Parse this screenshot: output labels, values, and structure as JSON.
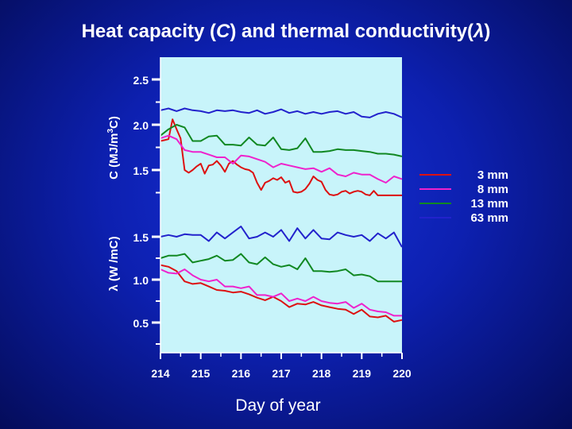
{
  "title": {
    "prefix": "Heat capacity (",
    "sym1": "C",
    "middle": ") and thermal conductivity(",
    "sym2": "λ",
    "suffix": ")"
  },
  "chart_data": [
    {
      "type": "line",
      "ylabel_parts": [
        "C (MJ/m",
        "3",
        "C)"
      ],
      "ylim": [
        1.0,
        2.5
      ],
      "yticks": [
        {
          "value": 1.5,
          "label": "1.5"
        },
        {
          "value": 2.0,
          "label": "2.0"
        },
        {
          "value": 2.5,
          "label": "2.5"
        }
      ],
      "series": [
        {
          "name": "3 mm",
          "color": "#dd1111",
          "x": [
            214.0,
            214.1,
            214.2,
            214.3,
            214.4,
            214.5,
            214.6,
            214.7,
            214.8,
            214.9,
            215.0,
            215.1,
            215.2,
            215.3,
            215.4,
            215.5,
            215.6,
            215.7,
            215.8,
            215.9,
            216.0,
            216.1,
            216.2,
            216.3,
            216.4,
            216.5,
            216.6,
            216.7,
            216.8,
            216.9,
            217.0,
            217.1,
            217.2,
            217.3,
            217.4,
            217.5,
            217.6,
            217.7,
            217.8,
            217.9,
            218.0,
            218.1,
            218.2,
            218.3,
            218.4,
            218.5,
            218.6,
            218.7,
            218.8,
            218.9,
            219.0,
            219.1,
            219.2,
            219.3,
            219.4,
            219.5,
            219.6,
            219.7,
            219.8,
            219.9,
            220.0
          ],
          "values": [
            1.82,
            1.83,
            1.84,
            2.06,
            1.95,
            1.85,
            1.5,
            1.47,
            1.5,
            1.54,
            1.57,
            1.46,
            1.55,
            1.56,
            1.6,
            1.55,
            1.48,
            1.57,
            1.6,
            1.56,
            1.53,
            1.51,
            1.5,
            1.47,
            1.36,
            1.28,
            1.36,
            1.38,
            1.41,
            1.39,
            1.42,
            1.36,
            1.38,
            1.26,
            1.25,
            1.26,
            1.29,
            1.35,
            1.43,
            1.39,
            1.37,
            1.28,
            1.23,
            1.22,
            1.23,
            1.26,
            1.27,
            1.24,
            1.26,
            1.27,
            1.26,
            1.23,
            1.22,
            1.27,
            1.22,
            1.22,
            1.22,
            1.22,
            1.22,
            1.22,
            1.22
          ]
        },
        {
          "name": "8 mm",
          "color": "#ee22cc",
          "x": [
            214.0,
            214.2,
            214.4,
            214.6,
            214.8,
            215.0,
            215.2,
            215.4,
            215.6,
            215.8,
            216.0,
            216.2,
            216.4,
            216.6,
            216.8,
            217.0,
            217.2,
            217.4,
            217.6,
            217.8,
            218.0,
            218.2,
            218.4,
            218.6,
            218.8,
            219.0,
            219.2,
            219.4,
            219.6,
            219.8,
            220.0
          ],
          "values": [
            1.85,
            1.88,
            1.84,
            1.72,
            1.7,
            1.7,
            1.67,
            1.64,
            1.64,
            1.57,
            1.66,
            1.65,
            1.62,
            1.59,
            1.53,
            1.57,
            1.55,
            1.53,
            1.51,
            1.52,
            1.48,
            1.52,
            1.45,
            1.43,
            1.47,
            1.45,
            1.45,
            1.4,
            1.36,
            1.43,
            1.4
          ]
        },
        {
          "name": "13 mm",
          "color": "#118822",
          "x": [
            214.0,
            214.2,
            214.4,
            214.6,
            214.8,
            215.0,
            215.2,
            215.4,
            215.6,
            215.8,
            216.0,
            216.2,
            216.4,
            216.6,
            216.8,
            217.0,
            217.2,
            217.4,
            217.6,
            217.8,
            218.0,
            218.2,
            218.4,
            218.6,
            218.8,
            219.0,
            219.2,
            219.4,
            219.6,
            219.8,
            220.0
          ],
          "values": [
            1.88,
            1.95,
            2.0,
            1.97,
            1.82,
            1.82,
            1.87,
            1.88,
            1.78,
            1.78,
            1.77,
            1.86,
            1.78,
            1.77,
            1.86,
            1.73,
            1.72,
            1.74,
            1.85,
            1.7,
            1.7,
            1.71,
            1.73,
            1.72,
            1.72,
            1.71,
            1.7,
            1.68,
            1.68,
            1.67,
            1.65
          ]
        },
        {
          "name": "63 mm",
          "color": "#2222cc",
          "x": [
            214.0,
            214.2,
            214.4,
            214.6,
            214.8,
            215.0,
            215.2,
            215.4,
            215.6,
            215.8,
            216.0,
            216.2,
            216.4,
            216.6,
            216.8,
            217.0,
            217.2,
            217.4,
            217.6,
            217.8,
            218.0,
            218.2,
            218.4,
            218.6,
            218.8,
            219.0,
            219.2,
            219.4,
            219.6,
            219.8,
            220.0
          ],
          "values": [
            2.16,
            2.18,
            2.15,
            2.18,
            2.16,
            2.15,
            2.13,
            2.16,
            2.15,
            2.16,
            2.14,
            2.13,
            2.16,
            2.12,
            2.14,
            2.17,
            2.13,
            2.15,
            2.12,
            2.14,
            2.12,
            2.14,
            2.15,
            2.12,
            2.14,
            2.09,
            2.08,
            2.12,
            2.14,
            2.12,
            2.08
          ]
        }
      ]
    },
    {
      "type": "line",
      "xlabel": "Day of year",
      "xlim": [
        214,
        220
      ],
      "xticks": [
        214,
        215,
        216,
        217,
        218,
        219,
        220
      ],
      "ylabel": "λ (W /mC)",
      "ylim": [
        0.3,
        1.7
      ],
      "yticks": [
        {
          "value": 0.5,
          "label": "0.5"
        },
        {
          "value": 1.0,
          "label": "1.0"
        },
        {
          "value": 1.5,
          "label": "1.5"
        }
      ],
      "series": [
        {
          "name": "3 mm",
          "color": "#dd1111",
          "x": [
            214.0,
            214.2,
            214.4,
            214.6,
            214.8,
            215.0,
            215.2,
            215.4,
            215.6,
            215.8,
            216.0,
            216.2,
            216.4,
            216.6,
            216.8,
            217.0,
            217.2,
            217.4,
            217.6,
            217.8,
            218.0,
            218.2,
            218.4,
            218.6,
            218.8,
            219.0,
            219.2,
            219.4,
            219.6,
            219.8,
            220.0
          ],
          "values": [
            1.17,
            1.15,
            1.1,
            0.98,
            0.95,
            0.96,
            0.92,
            0.88,
            0.87,
            0.85,
            0.86,
            0.83,
            0.79,
            0.76,
            0.8,
            0.75,
            0.68,
            0.72,
            0.71,
            0.74,
            0.7,
            0.68,
            0.66,
            0.65,
            0.6,
            0.65,
            0.57,
            0.56,
            0.58,
            0.51,
            0.53
          ]
        },
        {
          "name": "8 mm",
          "color": "#ee22cc",
          "x": [
            214.0,
            214.2,
            214.4,
            214.6,
            214.8,
            215.0,
            215.2,
            215.4,
            215.6,
            215.8,
            216.0,
            216.2,
            216.4,
            216.6,
            216.8,
            217.0,
            217.2,
            217.4,
            217.6,
            217.8,
            218.0,
            218.2,
            218.4,
            218.6,
            218.8,
            219.0,
            219.2,
            219.4,
            219.6,
            219.8,
            220.0
          ],
          "values": [
            1.12,
            1.08,
            1.07,
            1.12,
            1.05,
            1.0,
            0.98,
            1.0,
            0.92,
            0.92,
            0.9,
            0.92,
            0.82,
            0.82,
            0.8,
            0.84,
            0.75,
            0.78,
            0.75,
            0.8,
            0.75,
            0.73,
            0.72,
            0.74,
            0.67,
            0.72,
            0.65,
            0.63,
            0.62,
            0.58,
            0.58
          ]
        },
        {
          "name": "13 mm",
          "color": "#118822",
          "x": [
            214.0,
            214.2,
            214.4,
            214.6,
            214.8,
            215.0,
            215.2,
            215.4,
            215.6,
            215.8,
            216.0,
            216.2,
            216.4,
            216.6,
            216.8,
            217.0,
            217.2,
            217.4,
            217.6,
            217.8,
            218.0,
            218.2,
            218.4,
            218.6,
            218.8,
            219.0,
            219.2,
            219.4,
            219.6,
            219.8,
            220.0
          ],
          "values": [
            1.25,
            1.28,
            1.28,
            1.3,
            1.2,
            1.22,
            1.24,
            1.28,
            1.22,
            1.23,
            1.3,
            1.2,
            1.18,
            1.26,
            1.18,
            1.15,
            1.17,
            1.12,
            1.25,
            1.1,
            1.1,
            1.09,
            1.1,
            1.12,
            1.05,
            1.06,
            1.04,
            0.98,
            0.98,
            0.98,
            0.98
          ]
        },
        {
          "name": "63 mm",
          "color": "#2222cc",
          "x": [
            214.0,
            214.2,
            214.4,
            214.6,
            214.8,
            215.0,
            215.2,
            215.4,
            215.6,
            215.8,
            216.0,
            216.2,
            216.4,
            216.6,
            216.8,
            217.0,
            217.2,
            217.4,
            217.6,
            217.8,
            218.0,
            218.2,
            218.4,
            218.6,
            218.8,
            219.0,
            219.2,
            219.4,
            219.6,
            219.8,
            220.0
          ],
          "values": [
            1.5,
            1.52,
            1.5,
            1.53,
            1.52,
            1.52,
            1.45,
            1.55,
            1.48,
            1.55,
            1.62,
            1.48,
            1.5,
            1.55,
            1.5,
            1.58,
            1.45,
            1.6,
            1.48,
            1.58,
            1.48,
            1.47,
            1.55,
            1.52,
            1.5,
            1.52,
            1.45,
            1.54,
            1.48,
            1.55,
            1.38
          ]
        }
      ]
    }
  ],
  "legend": [
    {
      "label": "3 mm",
      "color": "#dd1111"
    },
    {
      "label": "8 mm",
      "color": "#ee22cc"
    },
    {
      "label": "13 mm",
      "color": "#118822"
    },
    {
      "label": "63 mm",
      "color": "#2222cc"
    }
  ]
}
